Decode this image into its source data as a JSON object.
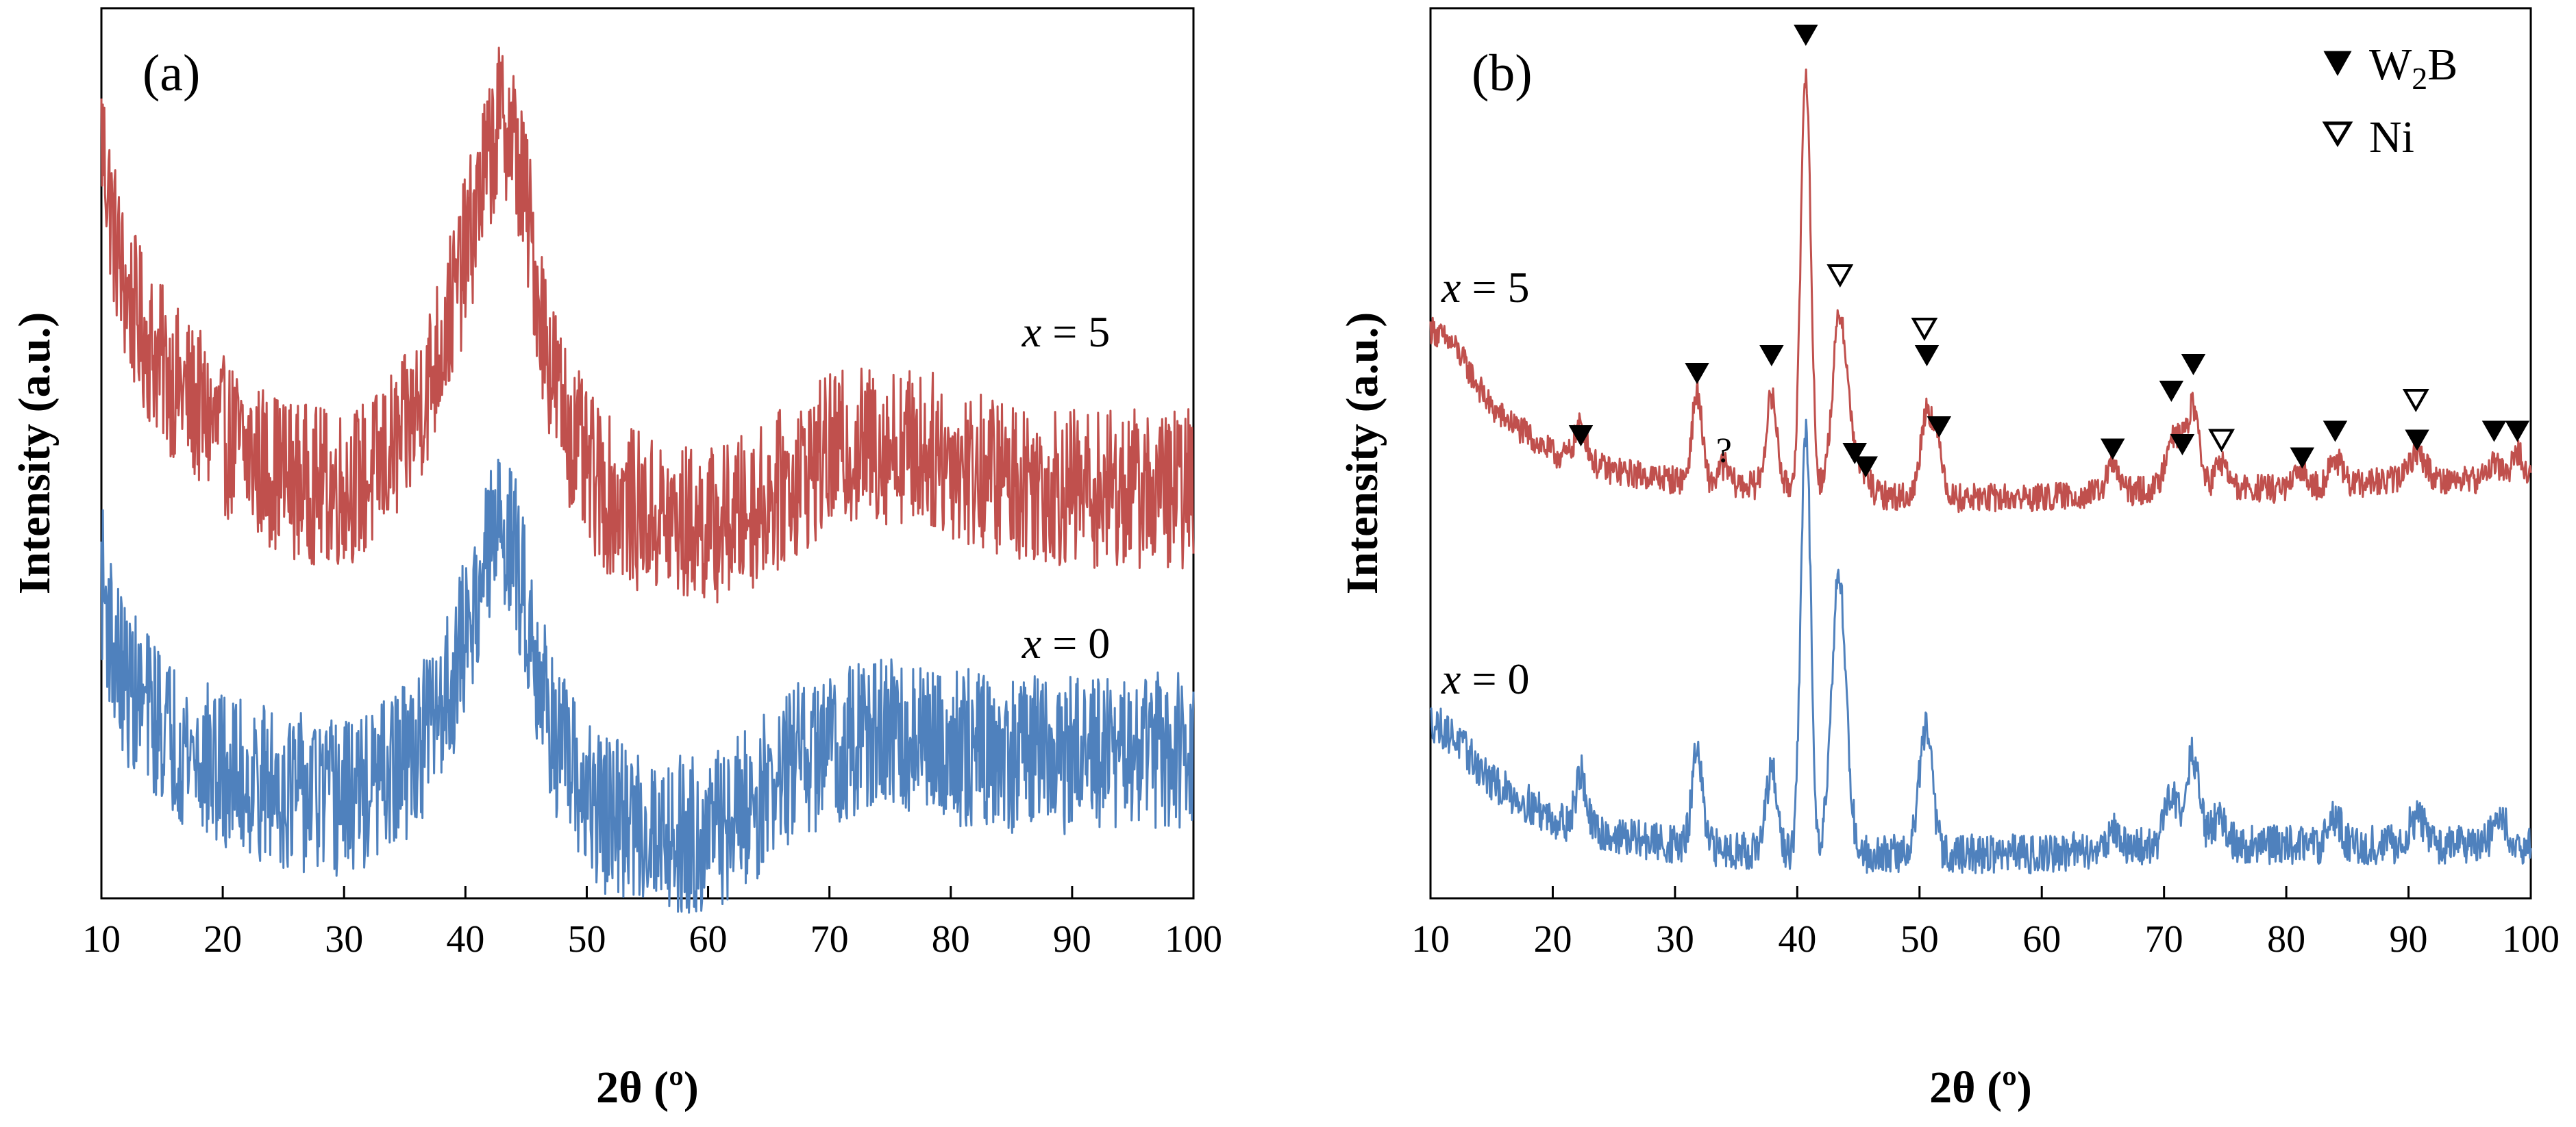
{
  "chart_data": [
    {
      "type": "line",
      "panel_label": "(a)",
      "xlabel": "2θ (º)",
      "ylabel": "Intensity (a.u.)",
      "xlim": [
        10,
        100
      ],
      "xticks": [
        10,
        20,
        30,
        40,
        50,
        60,
        70,
        80,
        90,
        100
      ],
      "ylim": [
        0,
        100
      ],
      "yticks_shown": false,
      "grid": false,
      "series": [
        {
          "name": "x = 5",
          "color": "#c0504d",
          "noise": 9,
          "x": [
            10,
            11,
            12,
            14,
            16,
            18,
            20,
            23,
            26,
            29,
            32,
            35,
            37,
            39,
            40.5,
            41.5,
            42.5,
            43.2,
            44,
            45,
            46,
            47,
            48,
            50,
            52,
            55,
            58,
            61,
            64,
            67,
            70,
            73,
            76,
            79,
            82,
            86,
            90,
            95,
            100
          ],
          "y": [
            86,
            75,
            68,
            62,
            58,
            55,
            52,
            49,
            47,
            46,
            47,
            52,
            58,
            67,
            75,
            81,
            86,
            88,
            85,
            78,
            68,
            60,
            55,
            48,
            45,
            43,
            42,
            42,
            44,
            47,
            50,
            51,
            51,
            50,
            48,
            47,
            46,
            46,
            46
          ]
        },
        {
          "name": "x = 0",
          "color": "#4f81bd",
          "noise": 9,
          "x": [
            10,
            11,
            12,
            14,
            16,
            18,
            20,
            23,
            26,
            29,
            32,
            35,
            37,
            39,
            40.5,
            41.5,
            42.5,
            43.2,
            44,
            45,
            46,
            47,
            48,
            50,
            52,
            55,
            58,
            61,
            64,
            67,
            70,
            73,
            76,
            79,
            82,
            86,
            90,
            95,
            100
          ],
          "y": [
            36,
            28,
            24,
            21,
            18,
            16,
            14,
            13,
            12,
            11,
            12,
            15,
            19,
            25,
            32,
            37,
            41,
            42,
            39,
            33,
            26,
            20,
            16,
            11,
            9,
            8,
            7,
            8,
            11,
            15,
            17,
            18,
            18,
            17,
            17,
            16,
            16,
            16,
            17
          ]
        }
      ],
      "annotations": [
        {
          "text_var": "x",
          "text_rest": " = 5",
          "x": 89.5,
          "y": 62
        },
        {
          "text_var": "x",
          "text_rest": " = 0",
          "x": 89.5,
          "y": 27
        }
      ]
    },
    {
      "type": "line",
      "panel_label": "(b)",
      "xlabel": "2θ (º)",
      "ylabel": "Intensity (a.u.)",
      "xlim": [
        10,
        100
      ],
      "xticks": [
        10,
        20,
        30,
        40,
        50,
        60,
        70,
        80,
        90,
        100
      ],
      "ylim": [
        0,
        100
      ],
      "yticks_shown": false,
      "grid": false,
      "legend": {
        "position": "top-right",
        "entries": [
          {
            "marker": "filled-triangle",
            "label_main": "W",
            "label_sub": "2",
            "label_end": "B"
          },
          {
            "marker": "open-triangle",
            "label": "Ni"
          }
        ]
      },
      "series": [
        {
          "name": "x = 5",
          "color": "#c0504d",
          "noise": 1.6,
          "baseline_x": [
            10,
            12,
            15,
            20,
            25,
            30,
            40,
            50,
            60,
            70,
            80,
            90,
            100
          ],
          "baseline_y": [
            64,
            62,
            55,
            50,
            48,
            47,
            46,
            45,
            45,
            46,
            46,
            47,
            47
          ],
          "peaks": [
            {
              "x": 22.3,
              "h": 4,
              "w": 0.5
            },
            {
              "x": 31.8,
              "h": 10,
              "w": 0.4
            },
            {
              "x": 34,
              "h": 2,
              "w": 0.4
            },
            {
              "x": 37.9,
              "h": 10,
              "w": 0.45
            },
            {
              "x": 40.7,
              "h": 47,
              "w": 0.4
            },
            {
              "x": 43.5,
              "h": 20,
              "w": 0.6
            },
            {
              "x": 44.7,
              "h": 3,
              "w": 0.4
            },
            {
              "x": 45.6,
              "h": 2,
              "w": 0.4
            },
            {
              "x": 50.6,
              "h": 10,
              "w": 0.5
            },
            {
              "x": 51.6,
              "h": 5,
              "w": 0.4
            },
            {
              "x": 65.8,
              "h": 3,
              "w": 0.5
            },
            {
              "x": 70.6,
              "h": 6,
              "w": 0.5
            },
            {
              "x": 71.5,
              "h": 3,
              "w": 0.4
            },
            {
              "x": 72.4,
              "h": 9,
              "w": 0.5
            },
            {
              "x": 74.7,
              "h": 3,
              "w": 0.5
            },
            {
              "x": 81.3,
              "h": 2,
              "w": 0.5
            },
            {
              "x": 84,
              "h": 3,
              "w": 0.5
            },
            {
              "x": 90.7,
              "h": 3,
              "w": 0.7
            },
            {
              "x": 97,
              "h": 2,
              "w": 0.5
            },
            {
              "x": 98.9,
              "h": 3,
              "w": 0.5
            }
          ]
        },
        {
          "name": "x = 0",
          "color": "#4f81bd",
          "noise": 2.2,
          "baseline_x": [
            10,
            12,
            15,
            20,
            25,
            30,
            40,
            50,
            60,
            70,
            80,
            90,
            100
          ],
          "baseline_y": [
            20,
            18,
            13,
            9,
            7,
            6,
            5,
            5,
            5,
            6,
            6,
            6,
            6
          ],
          "peaks": [
            {
              "x": 22.3,
              "h": 6,
              "w": 0.4
            },
            {
              "x": 31.8,
              "h": 11,
              "w": 0.4
            },
            {
              "x": 37.9,
              "h": 9,
              "w": 0.45
            },
            {
              "x": 40.7,
              "h": 48,
              "w": 0.4
            },
            {
              "x": 43.4,
              "h": 31,
              "w": 0.6
            },
            {
              "x": 50.5,
              "h": 14,
              "w": 0.55
            },
            {
              "x": 65.8,
              "h": 2,
              "w": 0.5
            },
            {
              "x": 70.6,
              "h": 6,
              "w": 0.5
            },
            {
              "x": 72.3,
              "h": 10,
              "w": 0.55
            },
            {
              "x": 74.5,
              "h": 3,
              "w": 0.6
            },
            {
              "x": 84,
              "h": 3,
              "w": 0.5
            },
            {
              "x": 90.7,
              "h": 3,
              "w": 0.7
            },
            {
              "x": 97.5,
              "h": 3,
              "w": 0.6
            }
          ]
        }
      ],
      "markers": [
        {
          "type": "filled",
          "x": 22.3,
          "y": 52
        },
        {
          "type": "filled",
          "x": 31.8,
          "y": 59
        },
        {
          "type": "filled",
          "x": 37.9,
          "y": 61
        },
        {
          "type": "filled",
          "x": 40.7,
          "y": 97
        },
        {
          "type": "open",
          "x": 43.5,
          "y": 70
        },
        {
          "type": "filled",
          "x": 44.7,
          "y": 50
        },
        {
          "type": "filled",
          "x": 45.6,
          "y": 48.5
        },
        {
          "type": "open",
          "x": 50.4,
          "y": 64
        },
        {
          "type": "filled",
          "x": 50.6,
          "y": 61
        },
        {
          "type": "filled",
          "x": 51.6,
          "y": 53
        },
        {
          "type": "filled",
          "x": 65.8,
          "y": 50.5
        },
        {
          "type": "filled",
          "x": 70.6,
          "y": 57
        },
        {
          "type": "filled",
          "x": 71.5,
          "y": 51
        },
        {
          "type": "filled",
          "x": 72.4,
          "y": 60
        },
        {
          "type": "open",
          "x": 74.7,
          "y": 51.5
        },
        {
          "type": "filled",
          "x": 81.3,
          "y": 49.5
        },
        {
          "type": "filled",
          "x": 84,
          "y": 52.5
        },
        {
          "type": "open",
          "x": 90.6,
          "y": 56
        },
        {
          "type": "filled",
          "x": 90.7,
          "y": 51.5
        },
        {
          "type": "filled",
          "x": 97,
          "y": 52.5
        },
        {
          "type": "filled",
          "x": 98.9,
          "y": 52.5
        }
      ],
      "question_mark": {
        "text": "?",
        "x": 34,
        "y": 49
      },
      "annotations": [
        {
          "text_var": "x",
          "text_rest": " = 5",
          "x": 14.5,
          "y": 67
        },
        {
          "text_var": "x",
          "text_rest": " = 0",
          "x": 14.5,
          "y": 23
        }
      ]
    }
  ]
}
